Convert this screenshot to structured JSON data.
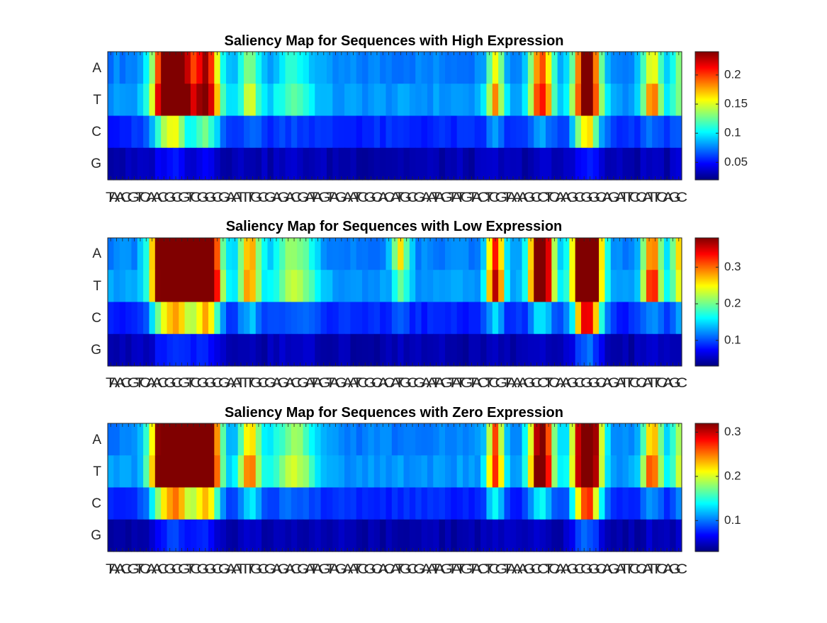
{
  "chart_data": [
    {
      "type": "heatmap",
      "title": "Saliency Map for Sequences with High Expression",
      "rows": [
        "A",
        "T",
        "C",
        "G"
      ],
      "sequence": "TAACGTCAACGCGTCGGCGAATTTGCGAGACGATAGTAGAATCGCACATGCGAATAGTATGTACTCGTAAAGCCTCAAGCGGCAGATTCCATTCAGC",
      "colormap": "jet",
      "clim": [
        0.02,
        0.24
      ],
      "colorbar_ticks": [
        "0.05",
        "0.1",
        "0.15",
        "0.2"
      ],
      "colorbar_tick_values": [
        0.05,
        0.1,
        0.15,
        0.2
      ],
      "peaks": [
        {
          "center": 9.5,
          "width": 1.8,
          "A": 0.19,
          "T": 0.21,
          "C": 0.09,
          "G": 0.02
        },
        {
          "center": 11.5,
          "width": 1.5,
          "A": 0.17,
          "T": 0.2,
          "C": 0.05,
          "G": 0.01
        },
        {
          "center": 16.0,
          "width": 1.7,
          "A": 0.18,
          "T": 0.2,
          "C": 0.08,
          "G": 0.02
        },
        {
          "center": 23.5,
          "width": 1.3,
          "A": 0.07,
          "T": 0.08,
          "C": 0.02,
          "G": 0.005
        },
        {
          "center": 31.0,
          "width": 2.5,
          "A": 0.04,
          "T": 0.05,
          "C": 0.01,
          "G": 0.005
        },
        {
          "center": 65.0,
          "width": 1.0,
          "A": 0.1,
          "T": 0.12,
          "C": 0.03,
          "G": 0.005
        },
        {
          "center": 72.8,
          "width": 1.4,
          "A": 0.15,
          "T": 0.16,
          "C": 0.03,
          "G": 0.005
        },
        {
          "center": 80.5,
          "width": 1.6,
          "A": 0.21,
          "T": 0.21,
          "C": 0.13,
          "G": 0.03
        },
        {
          "center": 91.5,
          "width": 1.2,
          "A": 0.1,
          "T": 0.13,
          "C": 0.02,
          "G": 0.005
        },
        {
          "center": 96.0,
          "width": 0.9,
          "A": 0.06,
          "T": 0.06,
          "C": 0.02,
          "G": 0.005
        }
      ]
    },
    {
      "type": "heatmap",
      "title": "Saliency Map for Sequences with Low Expression",
      "rows": [
        "A",
        "T",
        "C",
        "G"
      ],
      "sequence": "TAACGTCAACGCGTCGGCGAATTTGCGAGACGATAGTAGAATCGCACATGCGAATAGTATGTACTCGTAAAGCCTCAAGCGGCAGATTCCATTCAGC",
      "colormap": "jet",
      "clim": [
        0.03,
        0.38
      ],
      "colorbar_ticks": [
        "0.1",
        "0.2",
        "0.3"
      ],
      "colorbar_tick_values": [
        0.1,
        0.2,
        0.3
      ],
      "peaks": [
        {
          "center": 9.5,
          "width": 1.8,
          "A": 0.3,
          "T": 0.26,
          "C": 0.12,
          "G": 0.03
        },
        {
          "center": 12.0,
          "width": 1.3,
          "A": 0.2,
          "T": 0.22,
          "C": 0.08,
          "G": 0.02
        },
        {
          "center": 16.0,
          "width": 1.7,
          "A": 0.28,
          "T": 0.3,
          "C": 0.14,
          "G": 0.03
        },
        {
          "center": 23.5,
          "width": 1.3,
          "A": 0.12,
          "T": 0.12,
          "C": 0.04,
          "G": 0.005
        },
        {
          "center": 31.0,
          "width": 2.5,
          "A": 0.07,
          "T": 0.08,
          "C": 0.02,
          "G": 0.005
        },
        {
          "center": 49.0,
          "width": 1.0,
          "A": 0.1,
          "T": 0.05,
          "C": 0.01,
          "G": 0.005
        },
        {
          "center": 65.0,
          "width": 1.0,
          "A": 0.16,
          "T": 0.18,
          "C": 0.05,
          "G": 0.005
        },
        {
          "center": 72.8,
          "width": 1.4,
          "A": 0.25,
          "T": 0.24,
          "C": 0.05,
          "G": 0.005
        },
        {
          "center": 80.5,
          "width": 1.6,
          "A": 0.34,
          "T": 0.31,
          "C": 0.2,
          "G": 0.05
        },
        {
          "center": 91.5,
          "width": 1.2,
          "A": 0.14,
          "T": 0.16,
          "C": 0.03,
          "G": 0.005
        },
        {
          "center": 96.0,
          "width": 0.9,
          "A": 0.1,
          "T": 0.08,
          "C": 0.03,
          "G": 0.005
        }
      ]
    },
    {
      "type": "heatmap",
      "title": "Saliency Map for Sequences with Zero Expression",
      "rows": [
        "A",
        "T",
        "C",
        "G"
      ],
      "sequence": "TAACGTCAACGCGTCGGCGAATTTGCGAGACGATAGTAGAATCGCACATGCGAATAGTATGTACTCGTAAAGCCTCAAGCGGCAGATTCCATTCAGC",
      "colormap": "jet",
      "clim": [
        0.03,
        0.32
      ],
      "colorbar_ticks": [
        "0.1",
        "0.2",
        "0.3"
      ],
      "colorbar_tick_values": [
        0.1,
        0.2,
        0.3
      ],
      "peaks": [
        {
          "center": 9.5,
          "width": 1.8,
          "A": 0.26,
          "T": 0.27,
          "C": 0.13,
          "G": 0.03
        },
        {
          "center": 12.0,
          "width": 1.3,
          "A": 0.2,
          "T": 0.2,
          "C": 0.08,
          "G": 0.02
        },
        {
          "center": 16.0,
          "width": 1.7,
          "A": 0.25,
          "T": 0.26,
          "C": 0.14,
          "G": 0.03
        },
        {
          "center": 23.5,
          "width": 1.3,
          "A": 0.11,
          "T": 0.13,
          "C": 0.05,
          "G": 0.005
        },
        {
          "center": 31.0,
          "width": 2.5,
          "A": 0.07,
          "T": 0.08,
          "C": 0.02,
          "G": 0.005
        },
        {
          "center": 65.0,
          "width": 1.0,
          "A": 0.14,
          "T": 0.15,
          "C": 0.06,
          "G": 0.005
        },
        {
          "center": 72.8,
          "width": 1.4,
          "A": 0.21,
          "T": 0.22,
          "C": 0.06,
          "G": 0.005
        },
        {
          "center": 80.5,
          "width": 1.6,
          "A": 0.28,
          "T": 0.27,
          "C": 0.18,
          "G": 0.05
        },
        {
          "center": 91.5,
          "width": 1.2,
          "A": 0.12,
          "T": 0.14,
          "C": 0.03,
          "G": 0.005
        },
        {
          "center": 96.0,
          "width": 0.9,
          "A": 0.08,
          "T": 0.08,
          "C": 0.03,
          "G": 0.005
        }
      ]
    }
  ]
}
